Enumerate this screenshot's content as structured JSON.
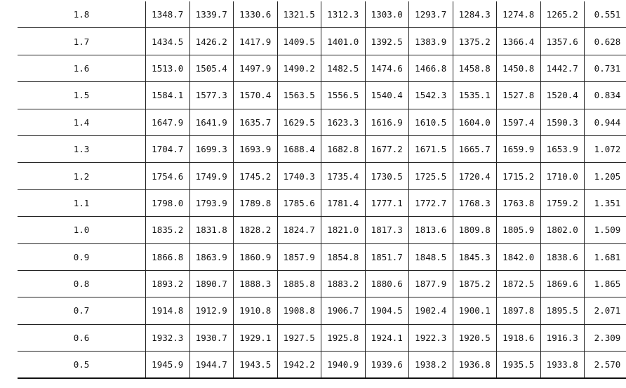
{
  "table": {
    "rows": [
      [
        "1.8",
        "1348.7",
        "1339.7",
        "1330.6",
        "1321.5",
        "1312.3",
        "1303.0",
        "1293.7",
        "1284.3",
        "1274.8",
        "1265.2",
        "0.551"
      ],
      [
        "1.7",
        "1434.5",
        "1426.2",
        "1417.9",
        "1409.5",
        "1401.0",
        "1392.5",
        "1383.9",
        "1375.2",
        "1366.4",
        "1357.6",
        "0.628"
      ],
      [
        "1.6",
        "1513.0",
        "1505.4",
        "1497.9",
        "1490.2",
        "1482.5",
        "1474.6",
        "1466.8",
        "1458.8",
        "1450.8",
        "1442.7",
        "0.731"
      ],
      [
        "1.5",
        "1584.1",
        "1577.3",
        "1570.4",
        "1563.5",
        "1556.5",
        "1540.4",
        "1542.3",
        "1535.1",
        "1527.8",
        "1520.4",
        "0.834"
      ],
      [
        "1.4",
        "1647.9",
        "1641.9",
        "1635.7",
        "1629.5",
        "1623.3",
        "1616.9",
        "1610.5",
        "1604.0",
        "1597.4",
        "1590.3",
        "0.944"
      ],
      [
        "1.3",
        "1704.7",
        "1699.3",
        "1693.9",
        "1688.4",
        "1682.8",
        "1677.2",
        "1671.5",
        "1665.7",
        "1659.9",
        "1653.9",
        "1.072"
      ],
      [
        "1.2",
        "1754.6",
        "1749.9",
        "1745.2",
        "1740.3",
        "1735.4",
        "1730.5",
        "1725.5",
        "1720.4",
        "1715.2",
        "1710.0",
        "1.205"
      ],
      [
        "1.1",
        "1798.0",
        "1793.9",
        "1789.8",
        "1785.6",
        "1781.4",
        "1777.1",
        "1772.7",
        "1768.3",
        "1763.8",
        "1759.2",
        "1.351"
      ],
      [
        "1.0",
        "1835.2",
        "1831.8",
        "1828.2",
        "1824.7",
        "1821.0",
        "1817.3",
        "1813.6",
        "1809.8",
        "1805.9",
        "1802.0",
        "1.509"
      ],
      [
        "0.9",
        "1866.8",
        "1863.9",
        "1860.9",
        "1857.9",
        "1854.8",
        "1851.7",
        "1848.5",
        "1845.3",
        "1842.0",
        "1838.6",
        "1.681"
      ],
      [
        "0.8",
        "1893.2",
        "1890.7",
        "1888.3",
        "1885.8",
        "1883.2",
        "1880.6",
        "1877.9",
        "1875.2",
        "1872.5",
        "1869.6",
        "1.865"
      ],
      [
        "0.7",
        "1914.8",
        "1912.9",
        "1910.8",
        "1908.8",
        "1906.7",
        "1904.5",
        "1902.4",
        "1900.1",
        "1897.8",
        "1895.5",
        "2.071"
      ],
      [
        "0.6",
        "1932.3",
        "1930.7",
        "1929.1",
        "1927.5",
        "1925.8",
        "1924.1",
        "1922.3",
        "1920.5",
        "1918.6",
        "1916.3",
        "2.309"
      ],
      [
        "0.5",
        "1945.9",
        "1944.7",
        "1943.5",
        "1942.2",
        "1940.9",
        "1939.6",
        "1938.2",
        "1936.8",
        "1935.5",
        "1933.8",
        "2.570"
      ]
    ]
  }
}
